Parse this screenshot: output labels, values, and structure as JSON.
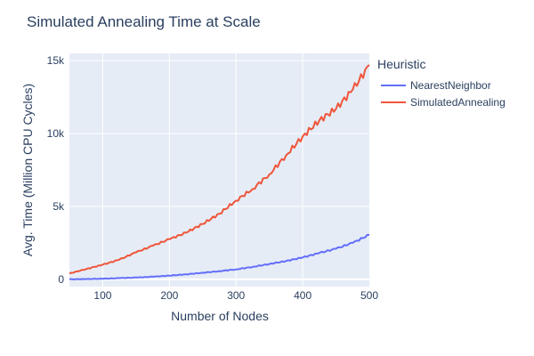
{
  "chart_data": {
    "type": "line",
    "title": "Simulated Annealing Time at Scale",
    "xlabel": "Number of Nodes",
    "ylabel": "Avg. Time (Million CPU Cycles)",
    "xlim": [
      50,
      500
    ],
    "ylim": [
      -500,
      15500
    ],
    "x_ticks": [
      100,
      200,
      300,
      400,
      500
    ],
    "x_tick_labels": [
      "100",
      "200",
      "300",
      "400",
      "500"
    ],
    "y_ticks": [
      0,
      5000,
      10000,
      15000
    ],
    "y_tick_labels": [
      "0",
      "5k",
      "10k",
      "15k"
    ],
    "grid": true,
    "legend_title": "Heuristic",
    "legend_position": "right",
    "x": [
      50,
      75,
      100,
      125,
      150,
      175,
      200,
      225,
      250,
      275,
      300,
      325,
      350,
      375,
      400,
      425,
      450,
      475,
      500
    ],
    "series": [
      {
        "name": "NearestNeighbor",
        "color": "#636efa",
        "values": [
          0,
          15,
          40,
          80,
          120,
          180,
          250,
          340,
          450,
          560,
          680,
          850,
          1050,
          1250,
          1500,
          1800,
          2100,
          2500,
          3050
        ]
      },
      {
        "name": "SimulatedAnnealing",
        "color": "#ef553b",
        "values": [
          400,
          700,
          1000,
          1350,
          1850,
          2300,
          2750,
          3200,
          3800,
          4500,
          5400,
          6200,
          7200,
          8500,
          9800,
          10900,
          11700,
          13000,
          14700
        ]
      }
    ]
  }
}
